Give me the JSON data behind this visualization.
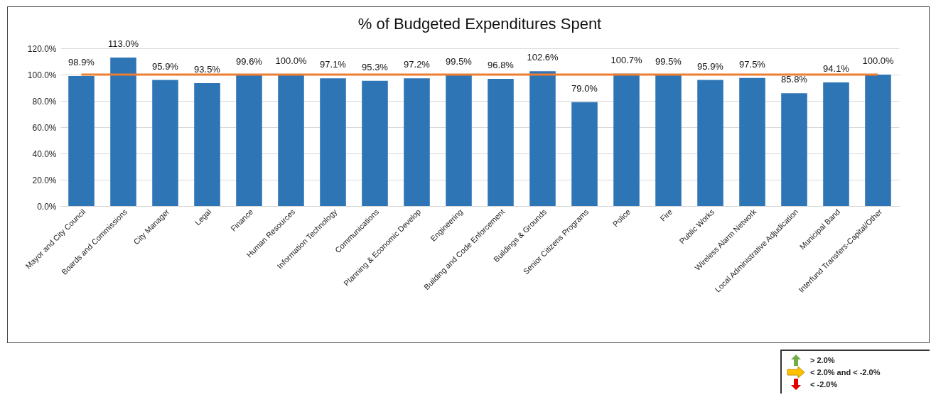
{
  "chart_data": {
    "type": "bar",
    "title": "% of Budgeted Expenditures Spent",
    "categories": [
      "Mayor and City Council",
      "Boards and Commissions",
      "City Manager",
      "Legal",
      "Finance",
      "Human Resources",
      "Information Technology",
      "Communications",
      "Planning & Economic Develop",
      "Engineering",
      "Building and Code Enforcement",
      "Buildings & Grounds",
      "Senior Citizens Programs",
      "Police",
      "Fire",
      "Public Works",
      "Wireless Alarm Network",
      "Local Administrative Adjudication",
      "Municipal Band",
      "Interfund Transfers-Capital/Other"
    ],
    "values": [
      98.9,
      113.0,
      95.9,
      93.5,
      99.6,
      100.0,
      97.1,
      95.3,
      97.2,
      99.5,
      96.8,
      102.6,
      79.0,
      100.7,
      99.5,
      95.9,
      97.5,
      85.8,
      94.1,
      100.0
    ],
    "value_labels": [
      "98.9%",
      "113.0%",
      "95.9%",
      "93.5%",
      "99.6%",
      "100.0%",
      "97.1%",
      "95.3%",
      "97.2%",
      "99.5%",
      "96.8%",
      "102.6%",
      "79.0%",
      "100.7%",
      "99.5%",
      "95.9%",
      "97.5%",
      "85.8%",
      "94.1%",
      "100.0%"
    ],
    "color": "#2e75b6",
    "ylim": [
      0,
      120
    ],
    "yticks": [
      {
        "value": 0,
        "label": "0.0%"
      },
      {
        "value": 20,
        "label": "20.0%"
      },
      {
        "value": 40,
        "label": "40.0%"
      },
      {
        "value": 60,
        "label": "60.0%"
      },
      {
        "value": 80,
        "label": "80.0%"
      },
      {
        "value": 100,
        "label": "100.0%"
      },
      {
        "value": 120,
        "label": "120.0%"
      }
    ],
    "grid": "y",
    "ref_lines": [
      {
        "axis": "y",
        "value": 100,
        "color": "#ed7d31"
      }
    ],
    "annotations": [
      "> 2.0%",
      "< 2.0% and < -2.0%",
      "< -2.0%"
    ]
  }
}
